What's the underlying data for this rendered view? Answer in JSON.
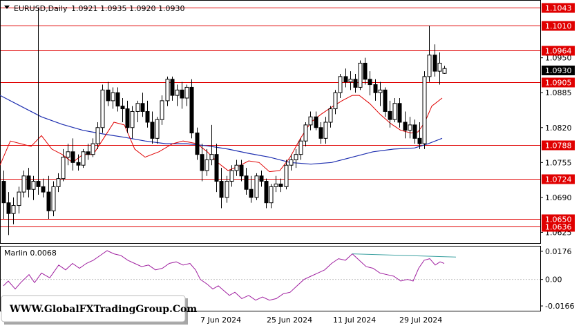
{
  "header": {
    "symbol_label": "EURUSD,Daily",
    "ohlc_label": "1.0921 1.0935 1.0920 1.0930"
  },
  "price_axis": {
    "ticks": [
      "1.0950",
      "1.0885",
      "1.0820",
      "1.0755",
      "1.0690",
      "1.0625"
    ],
    "current_price": "1.0930"
  },
  "levels": [
    "1.1043",
    "1.1010",
    "1.0964",
    "1.0905",
    "1.0788",
    "1.0724",
    "1.0650",
    "1.0636"
  ],
  "indicator": {
    "label": "Marlin 0.0068",
    "ticks": [
      "0.0176",
      "0.00",
      "-0.0166"
    ]
  },
  "time_axis": [
    "7 Jun 2024",
    "25 Jun 2024",
    "11 Jul 2024",
    "29 Jul 2024"
  ],
  "watermark": "WWW.GlobalFXTradingGroup.Com",
  "colors": {
    "level_line": "#e00000",
    "level_label_bg": "#e00000",
    "ma_fast": "#e00000",
    "ma_slow": "#1e2fb0",
    "marlin_line": "#a020a0",
    "marlin_divergence": "#3aa0a0"
  },
  "chart_data": {
    "type": "candlestick",
    "title": "EURUSD,Daily",
    "price_range": [
      1.0605,
      1.1055
    ],
    "levels": [
      1.1043,
      1.101,
      1.0964,
      1.0905,
      1.0788,
      1.0724,
      1.065,
      1.0636
    ],
    "candles": [
      [
        1.072,
        1.074,
        1.065,
        1.068
      ],
      [
        1.068,
        1.07,
        1.062,
        1.066
      ],
      [
        1.066,
        1.069,
        1.064,
        1.0675
      ],
      [
        1.0675,
        1.071,
        1.066,
        1.07
      ],
      [
        1.07,
        1.074,
        1.069,
        1.073
      ],
      [
        1.073,
        1.0745,
        1.069,
        1.0705
      ],
      [
        1.0705,
        1.073,
        1.0685,
        1.072
      ],
      [
        1.072,
        1.1044,
        1.0695,
        1.071
      ],
      [
        1.071,
        1.0725,
        1.069,
        1.07
      ],
      [
        1.07,
        1.073,
        1.065,
        1.0665
      ],
      [
        1.0665,
        1.072,
        1.0655,
        1.071
      ],
      [
        1.071,
        1.0735,
        1.07,
        1.0725
      ],
      [
        1.0725,
        1.078,
        1.072,
        1.0765
      ],
      [
        1.0765,
        1.079,
        1.075,
        1.0775
      ],
      [
        1.0775,
        1.08,
        1.074,
        1.0755
      ],
      [
        1.0755,
        1.077,
        1.074,
        1.075
      ],
      [
        1.075,
        1.078,
        1.0745,
        1.0775
      ],
      [
        1.0775,
        1.079,
        1.076,
        1.077
      ],
      [
        1.077,
        1.08,
        1.0765,
        1.079
      ],
      [
        1.079,
        1.083,
        1.078,
        1.082
      ],
      [
        1.082,
        1.09,
        1.081,
        1.089
      ],
      [
        1.089,
        1.0905,
        1.086,
        1.087
      ],
      [
        1.087,
        1.0895,
        1.0855,
        1.0885
      ],
      [
        1.0885,
        1.0895,
        1.085,
        1.086
      ],
      [
        1.086,
        1.0875,
        1.083,
        1.0855
      ],
      [
        1.0855,
        1.087,
        1.081,
        1.082
      ],
      [
        1.082,
        1.086,
        1.08,
        1.085
      ],
      [
        1.085,
        1.087,
        1.083,
        1.0865
      ],
      [
        1.0865,
        1.0885,
        1.084,
        1.085
      ],
      [
        1.085,
        1.087,
        1.082,
        1.083
      ],
      [
        1.083,
        1.085,
        1.079,
        1.08
      ],
      [
        1.08,
        1.084,
        1.079,
        1.0835
      ],
      [
        1.0835,
        1.088,
        1.0825,
        1.087
      ],
      [
        1.087,
        1.0915,
        1.086,
        1.091
      ],
      [
        1.091,
        1.0915,
        1.087,
        1.088
      ],
      [
        1.088,
        1.09,
        1.086,
        1.089
      ],
      [
        1.089,
        1.0905,
        1.0855,
        1.0875
      ],
      [
        1.0875,
        1.09,
        1.086,
        1.0895
      ],
      [
        1.0895,
        1.091,
        1.08,
        1.081
      ],
      [
        1.081,
        1.082,
        1.076,
        1.077
      ],
      [
        1.077,
        1.079,
        1.072,
        1.074
      ],
      [
        1.074,
        1.078,
        1.073,
        1.076
      ],
      [
        1.076,
        1.0825,
        1.075,
        1.077
      ],
      [
        1.077,
        1.079,
        1.07,
        1.072
      ],
      [
        1.072,
        1.0745,
        1.067,
        1.069
      ],
      [
        1.069,
        1.073,
        1.068,
        1.072
      ],
      [
        1.072,
        1.075,
        1.071,
        1.074
      ],
      [
        1.074,
        1.076,
        1.073,
        1.075
      ],
      [
        1.075,
        1.076,
        1.072,
        1.073
      ],
      [
        1.073,
        1.0745,
        1.0695,
        1.0705
      ],
      [
        1.0705,
        1.073,
        1.068,
        1.069
      ],
      [
        1.069,
        1.0735,
        1.0685,
        1.073
      ],
      [
        1.073,
        1.074,
        1.071,
        1.072
      ],
      [
        1.072,
        1.0725,
        1.067,
        1.068
      ],
      [
        1.068,
        1.0715,
        1.067,
        1.071
      ],
      [
        1.071,
        1.073,
        1.07,
        1.0715
      ],
      [
        1.0715,
        1.0725,
        1.07,
        1.071
      ],
      [
        1.071,
        1.076,
        1.0705,
        1.075
      ],
      [
        1.075,
        1.077,
        1.074,
        1.076
      ],
      [
        1.076,
        1.078,
        1.0745,
        1.077
      ],
      [
        1.077,
        1.08,
        1.076,
        1.0795
      ],
      [
        1.0795,
        1.083,
        1.0785,
        1.0825
      ],
      [
        1.0825,
        1.085,
        1.0815,
        1.084
      ],
      [
        1.084,
        1.085,
        1.0815,
        1.082
      ],
      [
        1.082,
        1.083,
        1.079,
        1.08
      ],
      [
        1.08,
        1.084,
        1.079,
        1.083
      ],
      [
        1.083,
        1.086,
        1.082,
        1.0855
      ],
      [
        1.0855,
        1.089,
        1.0845,
        1.0885
      ],
      [
        1.0885,
        1.092,
        1.0875,
        1.0915
      ],
      [
        1.0915,
        1.093,
        1.0895,
        1.0905
      ],
      [
        1.0905,
        1.0925,
        1.089,
        1.091
      ],
      [
        1.091,
        1.092,
        1.0885,
        1.0895
      ],
      [
        1.0895,
        1.0945,
        1.089,
        1.094
      ],
      [
        1.094,
        1.095,
        1.09,
        1.091
      ],
      [
        1.091,
        1.0925,
        1.088,
        1.09
      ],
      [
        1.09,
        1.091,
        1.087,
        1.0885
      ],
      [
        1.0885,
        1.0905,
        1.086,
        1.089
      ],
      [
        1.089,
        1.0895,
        1.084,
        1.085
      ],
      [
        1.085,
        1.087,
        1.082,
        1.0835
      ],
      [
        1.0835,
        1.0875,
        1.083,
        1.0865
      ],
      [
        1.0865,
        1.0875,
        1.082,
        1.083
      ],
      [
        1.083,
        1.085,
        1.08,
        1.0815
      ],
      [
        1.0815,
        1.084,
        1.08,
        1.0825
      ],
      [
        1.0825,
        1.0835,
        1.079,
        1.08
      ],
      [
        1.08,
        1.083,
        1.078,
        1.079
      ],
      [
        1.079,
        1.0925,
        1.078,
        1.0915
      ],
      [
        1.0915,
        1.101,
        1.0905,
        1.0955
      ],
      [
        1.0955,
        1.0975,
        1.0915,
        1.0925
      ],
      [
        1.0925,
        1.096,
        1.09,
        1.094
      ],
      [
        1.0921,
        1.0935,
        1.092,
        1.093
      ]
    ],
    "ma_fast": [
      [
        0,
        1.075
      ],
      [
        15,
        1.0795
      ],
      [
        30,
        1.079
      ],
      [
        45,
        1.0785
      ],
      [
        60,
        1.0805
      ],
      [
        75,
        1.078
      ],
      [
        90,
        1.077
      ],
      [
        105,
        1.0755
      ],
      [
        120,
        1.077
      ],
      [
        135,
        1.077
      ],
      [
        150,
        1.08
      ],
      [
        165,
        1.083
      ],
      [
        180,
        1.0825
      ],
      [
        195,
        1.078
      ],
      [
        210,
        1.0765
      ],
      [
        230,
        1.0775
      ],
      [
        250,
        1.079
      ],
      [
        265,
        1.0795
      ],
      [
        285,
        1.079
      ],
      [
        300,
        1.0775
      ],
      [
        315,
        1.0755
      ],
      [
        330,
        1.074
      ],
      [
        345,
        1.0748
      ],
      [
        360,
        1.0758
      ],
      [
        375,
        1.0755
      ],
      [
        390,
        1.0738
      ],
      [
        405,
        1.074
      ],
      [
        420,
        1.0765
      ],
      [
        435,
        1.08
      ],
      [
        450,
        1.083
      ],
      [
        465,
        1.0845
      ],
      [
        480,
        1.0858
      ],
      [
        495,
        1.087
      ],
      [
        510,
        1.088
      ],
      [
        520,
        1.088
      ],
      [
        535,
        1.0865
      ],
      [
        550,
        1.0845
      ],
      [
        565,
        1.0828
      ],
      [
        580,
        1.0815
      ],
      [
        595,
        1.081
      ],
      [
        605,
        1.0812
      ],
      [
        615,
        1.083
      ],
      [
        625,
        1.086
      ],
      [
        640,
        1.0875
      ]
    ],
    "ma_slow": [
      [
        0,
        1.088
      ],
      [
        30,
        1.086
      ],
      [
        60,
        1.084
      ],
      [
        90,
        1.0826
      ],
      [
        120,
        1.0815
      ],
      [
        150,
        1.0808
      ],
      [
        180,
        1.0802
      ],
      [
        210,
        1.0795
      ],
      [
        240,
        1.079
      ],
      [
        270,
        1.079
      ],
      [
        300,
        1.0786
      ],
      [
        330,
        1.078
      ],
      [
        360,
        1.0772
      ],
      [
        390,
        1.0765
      ],
      [
        420,
        1.0755
      ],
      [
        450,
        1.0752
      ],
      [
        480,
        1.0755
      ],
      [
        510,
        1.0765
      ],
      [
        540,
        1.0775
      ],
      [
        570,
        1.078
      ],
      [
        600,
        1.0782
      ],
      [
        620,
        1.079
      ],
      [
        640,
        1.08
      ]
    ],
    "marlin": {
      "range": [
        -0.0196,
        0.0206
      ],
      "label": "Marlin 0.0068",
      "points": [
        [
          5,
          -0.004
        ],
        [
          12,
          -0.001
        ],
        [
          22,
          -0.006
        ],
        [
          30,
          -0.002
        ],
        [
          42,
          0.003
        ],
        [
          50,
          -0.002
        ],
        [
          60,
          0.004
        ],
        [
          72,
          0.001
        ],
        [
          85,
          0.009
        ],
        [
          95,
          0.006
        ],
        [
          105,
          0.01
        ],
        [
          115,
          0.007
        ],
        [
          125,
          0.01
        ],
        [
          135,
          0.012
        ],
        [
          145,
          0.015
        ],
        [
          155,
          0.018
        ],
        [
          165,
          0.016
        ],
        [
          175,
          0.015
        ],
        [
          185,
          0.012
        ],
        [
          195,
          0.01
        ],
        [
          205,
          0.008
        ],
        [
          215,
          0.009
        ],
        [
          225,
          0.006
        ],
        [
          235,
          0.007
        ],
        [
          245,
          0.01
        ],
        [
          255,
          0.011
        ],
        [
          265,
          0.009
        ],
        [
          275,
          0.01
        ],
        [
          283,
          0.006
        ],
        [
          290,
          0.0
        ],
        [
          300,
          -0.003
        ],
        [
          308,
          -0.006
        ],
        [
          316,
          -0.004
        ],
        [
          324,
          -0.007
        ],
        [
          332,
          -0.01
        ],
        [
          340,
          -0.008
        ],
        [
          350,
          -0.012
        ],
        [
          360,
          -0.01
        ],
        [
          370,
          -0.013
        ],
        [
          380,
          -0.011
        ],
        [
          390,
          -0.013
        ],
        [
          400,
          -0.012
        ],
        [
          410,
          -0.009
        ],
        [
          420,
          -0.008
        ],
        [
          430,
          -0.004
        ],
        [
          440,
          0.0
        ],
        [
          450,
          0.002
        ],
        [
          460,
          0.004
        ],
        [
          470,
          0.006
        ],
        [
          480,
          0.01
        ],
        [
          490,
          0.013
        ],
        [
          500,
          0.012
        ],
        [
          510,
          0.016
        ],
        [
          520,
          0.012
        ],
        [
          530,
          0.008
        ],
        [
          540,
          0.007
        ],
        [
          550,
          0.004
        ],
        [
          560,
          0.003
        ],
        [
          570,
          0.002
        ],
        [
          580,
          -0.001
        ],
        [
          590,
          0.0
        ],
        [
          598,
          -0.001
        ],
        [
          606,
          0.007
        ],
        [
          614,
          0.012
        ],
        [
          622,
          0.013
        ],
        [
          630,
          0.009
        ],
        [
          637,
          0.011
        ],
        [
          643,
          0.01
        ]
      ],
      "divergence": [
        [
          510,
          0.016
        ],
        [
          660,
          0.014
        ]
      ]
    }
  }
}
